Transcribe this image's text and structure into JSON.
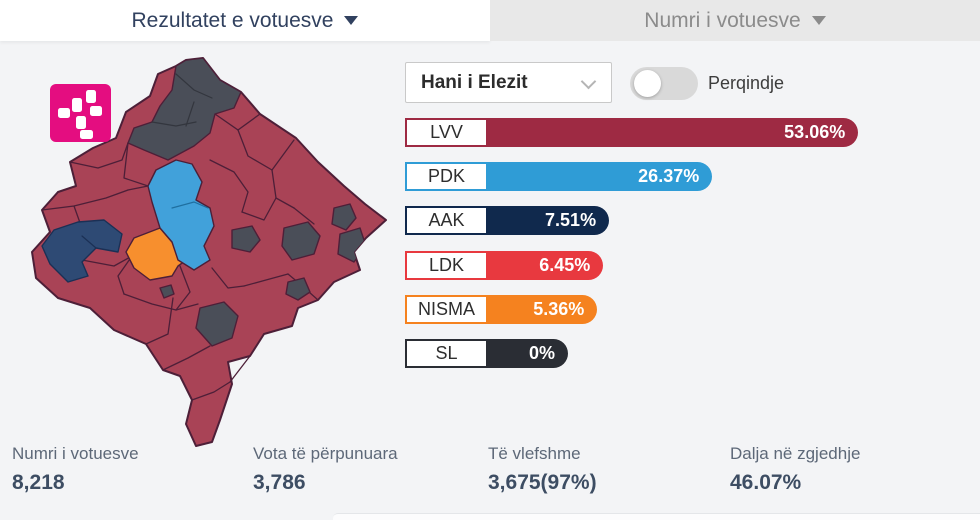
{
  "tabs": {
    "left_label": "Rezultatet e votuesve",
    "right_label": "Numri i votuesve"
  },
  "controls": {
    "municipality_selected": "Hani i Elezit",
    "toggle_label": "Perqindje",
    "toggle_on": false
  },
  "results": [
    {
      "party": "LVV",
      "value": 53.06,
      "display": "53.06%",
      "color": "#9e2a43"
    },
    {
      "party": "PDK",
      "value": 26.37,
      "display": "26.37%",
      "color": "#2f9cd6"
    },
    {
      "party": "AAK",
      "value": 7.51,
      "display": "7.51%",
      "color": "#10294d"
    },
    {
      "party": "LDK",
      "value": 6.45,
      "display": "6.45%",
      "color": "#e8393f"
    },
    {
      "party": "NISMA",
      "value": 5.36,
      "display": "5.36%",
      "color": "#f5821f"
    },
    {
      "party": "SL",
      "value": 0,
      "display": "0%",
      "color": "#2a2d34"
    }
  ],
  "stats": [
    {
      "label": "Numri i votuesve",
      "value": "8,218"
    },
    {
      "label": "Vota të përpunuara",
      "value": "3,786"
    },
    {
      "label": "Të vlefshme",
      "value": "3,675(97%)"
    },
    {
      "label": "Dalja në zgjedhje",
      "value": "46.07%"
    }
  ],
  "map": {
    "base_color": "#a94356",
    "border_color": "#4d1f38",
    "regions": [
      {
        "name": "north-leposaviq-mitrovica",
        "color": "#4a4e58"
      },
      {
        "name": "west-decan-junik",
        "color": "#2e4a74",
        "border": "#1b3055"
      },
      {
        "name": "malisheva",
        "color": "#f78f2e"
      },
      {
        "name": "central-drenas-shtime",
        "color": "#41a1da"
      },
      {
        "name": "east-gracanica",
        "color": "#4a4e58"
      },
      {
        "name": "east-novoberda",
        "color": "#4a4e58"
      },
      {
        "name": "east-kamenica-edge",
        "color": "#4a4e58"
      },
      {
        "name": "east-ranilug",
        "color": "#4a4e58"
      },
      {
        "name": "southeast-kllokot",
        "color": "#4a4e58"
      },
      {
        "name": "south-shterpce",
        "color": "#4a4e58"
      },
      {
        "name": "small-gray-dot",
        "color": "#4a4e58"
      }
    ]
  },
  "brand": {
    "logo_color": "#e40d80"
  }
}
